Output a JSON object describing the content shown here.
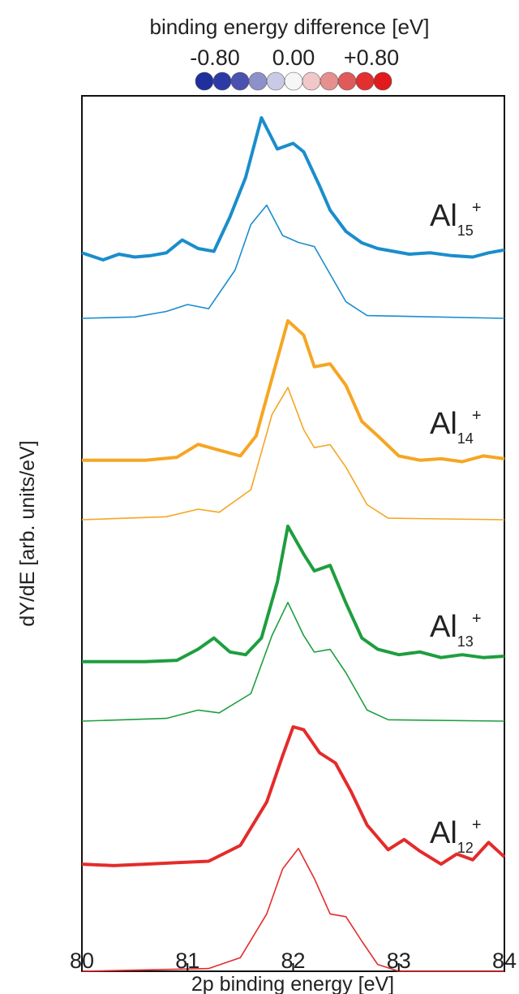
{
  "colorbar": {
    "title": "binding energy difference [eV]",
    "tick_labels": [
      "-0.80",
      "0.00",
      "+0.80"
    ],
    "colors": [
      "#1f2f9e",
      "#2c3aa6",
      "#4a52b0",
      "#8d91c9",
      "#c9cbe6",
      "#f6f6f6",
      "#f1c7c7",
      "#e58f8f",
      "#e05a5a",
      "#e23030",
      "#e11b1b"
    ]
  },
  "chart_data": {
    "type": "line",
    "title": "",
    "xlabel": "2p binding energy [eV]",
    "ylabel": "dY/dE [arb. units/eV]",
    "xlim": [
      80,
      84
    ],
    "xticks": [
      80,
      81,
      82,
      83,
      84
    ],
    "xtick_labels": [
      "80",
      "81",
      "82",
      "83",
      "84"
    ],
    "yticks": [],
    "panels": [
      {
        "label": "Al",
        "sub": "15",
        "sup": "+",
        "color": "#1a8dcc",
        "experiment": [
          [
            80,
            0.05
          ],
          [
            80.2,
            0.0
          ],
          [
            80.35,
            0.04
          ],
          [
            80.5,
            0.02
          ],
          [
            80.65,
            0.03
          ],
          [
            80.8,
            0.05
          ],
          [
            80.95,
            0.14
          ],
          [
            81.1,
            0.08
          ],
          [
            81.25,
            0.06
          ],
          [
            81.4,
            0.3
          ],
          [
            81.55,
            0.58
          ],
          [
            81.7,
            1.0
          ],
          [
            81.85,
            0.78
          ],
          [
            82.0,
            0.82
          ],
          [
            82.1,
            0.76
          ],
          [
            82.25,
            0.52
          ],
          [
            82.35,
            0.35
          ],
          [
            82.5,
            0.2
          ],
          [
            82.65,
            0.12
          ],
          [
            82.8,
            0.08
          ],
          [
            82.95,
            0.06
          ],
          [
            83.1,
            0.04
          ],
          [
            83.3,
            0.05
          ],
          [
            83.5,
            0.03
          ],
          [
            83.7,
            0.02
          ],
          [
            83.85,
            0.05
          ],
          [
            84,
            0.07
          ]
        ],
        "theory": [
          [
            80,
            0.0
          ],
          [
            80.5,
            0.01
          ],
          [
            80.8,
            0.05
          ],
          [
            81.0,
            0.1
          ],
          [
            81.2,
            0.07
          ],
          [
            81.45,
            0.35
          ],
          [
            81.6,
            0.68
          ],
          [
            81.75,
            0.82
          ],
          [
            81.9,
            0.6
          ],
          [
            82.05,
            0.55
          ],
          [
            82.2,
            0.52
          ],
          [
            82.35,
            0.32
          ],
          [
            82.5,
            0.12
          ],
          [
            82.7,
            0.02
          ],
          [
            84,
            0.0
          ]
        ]
      },
      {
        "label": "Al",
        "sub": "14",
        "sup": "+",
        "color": "#f5a623",
        "experiment": [
          [
            80,
            0.03
          ],
          [
            80.3,
            0.03
          ],
          [
            80.6,
            0.03
          ],
          [
            80.9,
            0.05
          ],
          [
            81.1,
            0.14
          ],
          [
            81.3,
            0.1
          ],
          [
            81.5,
            0.06
          ],
          [
            81.65,
            0.2
          ],
          [
            81.8,
            0.6
          ],
          [
            81.95,
            1.0
          ],
          [
            82.1,
            0.9
          ],
          [
            82.2,
            0.68
          ],
          [
            82.35,
            0.7
          ],
          [
            82.5,
            0.55
          ],
          [
            82.65,
            0.3
          ],
          [
            82.8,
            0.2
          ],
          [
            83.0,
            0.06
          ],
          [
            83.2,
            0.03
          ],
          [
            83.4,
            0.04
          ],
          [
            83.6,
            0.02
          ],
          [
            83.8,
            0.06
          ],
          [
            84,
            0.04
          ]
        ],
        "theory": [
          [
            80,
            0.0
          ],
          [
            80.8,
            0.02
          ],
          [
            81.1,
            0.07
          ],
          [
            81.3,
            0.05
          ],
          [
            81.6,
            0.2
          ],
          [
            81.8,
            0.7
          ],
          [
            81.95,
            0.88
          ],
          [
            82.1,
            0.6
          ],
          [
            82.2,
            0.48
          ],
          [
            82.35,
            0.5
          ],
          [
            82.5,
            0.35
          ],
          [
            82.7,
            0.1
          ],
          [
            82.9,
            0.01
          ],
          [
            84,
            0.0
          ]
        ]
      },
      {
        "label": "Al",
        "sub": "13",
        "sup": "+",
        "color": "#1e9e3e",
        "experiment": [
          [
            80,
            0.03
          ],
          [
            80.3,
            0.03
          ],
          [
            80.6,
            0.03
          ],
          [
            80.9,
            0.04
          ],
          [
            81.1,
            0.12
          ],
          [
            81.25,
            0.2
          ],
          [
            81.4,
            0.1
          ],
          [
            81.55,
            0.08
          ],
          [
            81.7,
            0.2
          ],
          [
            81.85,
            0.6
          ],
          [
            81.95,
            1.0
          ],
          [
            82.1,
            0.8
          ],
          [
            82.2,
            0.68
          ],
          [
            82.35,
            0.72
          ],
          [
            82.5,
            0.45
          ],
          [
            82.65,
            0.2
          ],
          [
            82.8,
            0.12
          ],
          [
            83.0,
            0.08
          ],
          [
            83.2,
            0.1
          ],
          [
            83.4,
            0.06
          ],
          [
            83.6,
            0.08
          ],
          [
            83.8,
            0.06
          ],
          [
            84,
            0.07
          ]
        ],
        "theory": [
          [
            80,
            0.0
          ],
          [
            80.8,
            0.02
          ],
          [
            81.1,
            0.08
          ],
          [
            81.3,
            0.06
          ],
          [
            81.6,
            0.2
          ],
          [
            81.8,
            0.62
          ],
          [
            81.95,
            0.86
          ],
          [
            82.1,
            0.62
          ],
          [
            82.2,
            0.5
          ],
          [
            82.35,
            0.52
          ],
          [
            82.5,
            0.35
          ],
          [
            82.7,
            0.08
          ],
          [
            82.9,
            0.01
          ],
          [
            84,
            0.0
          ]
        ]
      },
      {
        "label": "Al",
        "sub": "12",
        "sup": "+",
        "color": "#e42b2b",
        "experiment": [
          [
            80,
            0.05
          ],
          [
            80.3,
            0.04
          ],
          [
            80.6,
            0.05
          ],
          [
            80.9,
            0.06
          ],
          [
            81.2,
            0.07
          ],
          [
            81.5,
            0.18
          ],
          [
            81.75,
            0.48
          ],
          [
            81.9,
            0.8
          ],
          [
            82.0,
            1.0
          ],
          [
            82.1,
            0.98
          ],
          [
            82.25,
            0.82
          ],
          [
            82.4,
            0.75
          ],
          [
            82.55,
            0.55
          ],
          [
            82.7,
            0.32
          ],
          [
            82.9,
            0.15
          ],
          [
            83.05,
            0.22
          ],
          [
            83.2,
            0.14
          ],
          [
            83.4,
            0.05
          ],
          [
            83.55,
            0.12
          ],
          [
            83.7,
            0.08
          ],
          [
            83.85,
            0.2
          ],
          [
            84,
            0.1
          ]
        ],
        "theory": [
          [
            80,
            0.0
          ],
          [
            81.2,
            0.02
          ],
          [
            81.5,
            0.1
          ],
          [
            81.75,
            0.42
          ],
          [
            81.9,
            0.75
          ],
          [
            82.05,
            0.9
          ],
          [
            82.2,
            0.68
          ],
          [
            82.35,
            0.42
          ],
          [
            82.5,
            0.4
          ],
          [
            82.65,
            0.22
          ],
          [
            82.8,
            0.05
          ],
          [
            83.0,
            0.0
          ],
          [
            84,
            0.0
          ]
        ]
      }
    ]
  }
}
